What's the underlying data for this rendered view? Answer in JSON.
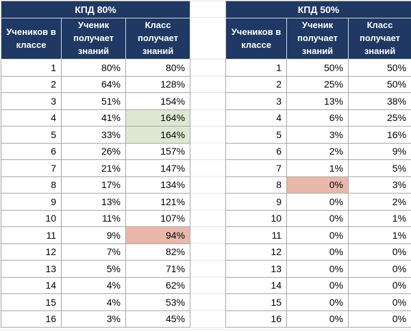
{
  "colors": {
    "navy": "#1f3864",
    "header_text": "#ffffff",
    "cell_text": "#000000",
    "border": "#a6a6a6",
    "header_divider": "#d9d9d9",
    "grid": "#e4e4e4",
    "highlight_good": "#dde8d3",
    "highlight_bad": "#e9b8aa"
  },
  "tables": [
    {
      "name": "kpd-80",
      "title": "КПД 80%",
      "columns": [
        "Учеников в классе",
        "Ученик получает знаний",
        "Класс получает знаний"
      ],
      "rows": [
        [
          "1",
          "80%",
          "80%"
        ],
        [
          "2",
          "64%",
          "128%"
        ],
        [
          "3",
          "51%",
          "154%"
        ],
        [
          "4",
          "41%",
          "164%"
        ],
        [
          "5",
          "33%",
          "164%"
        ],
        [
          "6",
          "26%",
          "157%"
        ],
        [
          "7",
          "21%",
          "147%"
        ],
        [
          "8",
          "17%",
          "134%"
        ],
        [
          "9",
          "13%",
          "121%"
        ],
        [
          "10",
          "11%",
          "107%"
        ],
        [
          "11",
          "9%",
          "94%"
        ],
        [
          "12",
          "7%",
          "82%"
        ],
        [
          "13",
          "5%",
          "71%"
        ],
        [
          "14",
          "4%",
          "62%"
        ],
        [
          "15",
          "4%",
          "53%"
        ],
        [
          "16",
          "3%",
          "45%"
        ]
      ],
      "highlights": [
        {
          "row": 3,
          "col": 2,
          "type": "good"
        },
        {
          "row": 4,
          "col": 2,
          "type": "good"
        },
        {
          "row": 10,
          "col": 2,
          "type": "bad"
        }
      ]
    },
    {
      "name": "kpd-50",
      "title": "КПД 50%",
      "columns": [
        "Учеников в классе",
        "Ученик получает знаний",
        "Класс получает знаний"
      ],
      "rows": [
        [
          "1",
          "50%",
          "50%"
        ],
        [
          "2",
          "25%",
          "50%"
        ],
        [
          "3",
          "13%",
          "38%"
        ],
        [
          "4",
          "6%",
          "25%"
        ],
        [
          "5",
          "3%",
          "16%"
        ],
        [
          "6",
          "2%",
          "9%"
        ],
        [
          "7",
          "1%",
          "5%"
        ],
        [
          "8",
          "0%",
          "3%"
        ],
        [
          "9",
          "0%",
          "2%"
        ],
        [
          "10",
          "0%",
          "1%"
        ],
        [
          "11",
          "0%",
          "1%"
        ],
        [
          "12",
          "0%",
          "0%"
        ],
        [
          "13",
          "0%",
          "0%"
        ],
        [
          "14",
          "0%",
          "0%"
        ],
        [
          "15",
          "0%",
          "0%"
        ],
        [
          "16",
          "0%",
          "0%"
        ]
      ],
      "highlights": [
        {
          "row": 7,
          "col": 1,
          "type": "bad"
        }
      ]
    }
  ]
}
